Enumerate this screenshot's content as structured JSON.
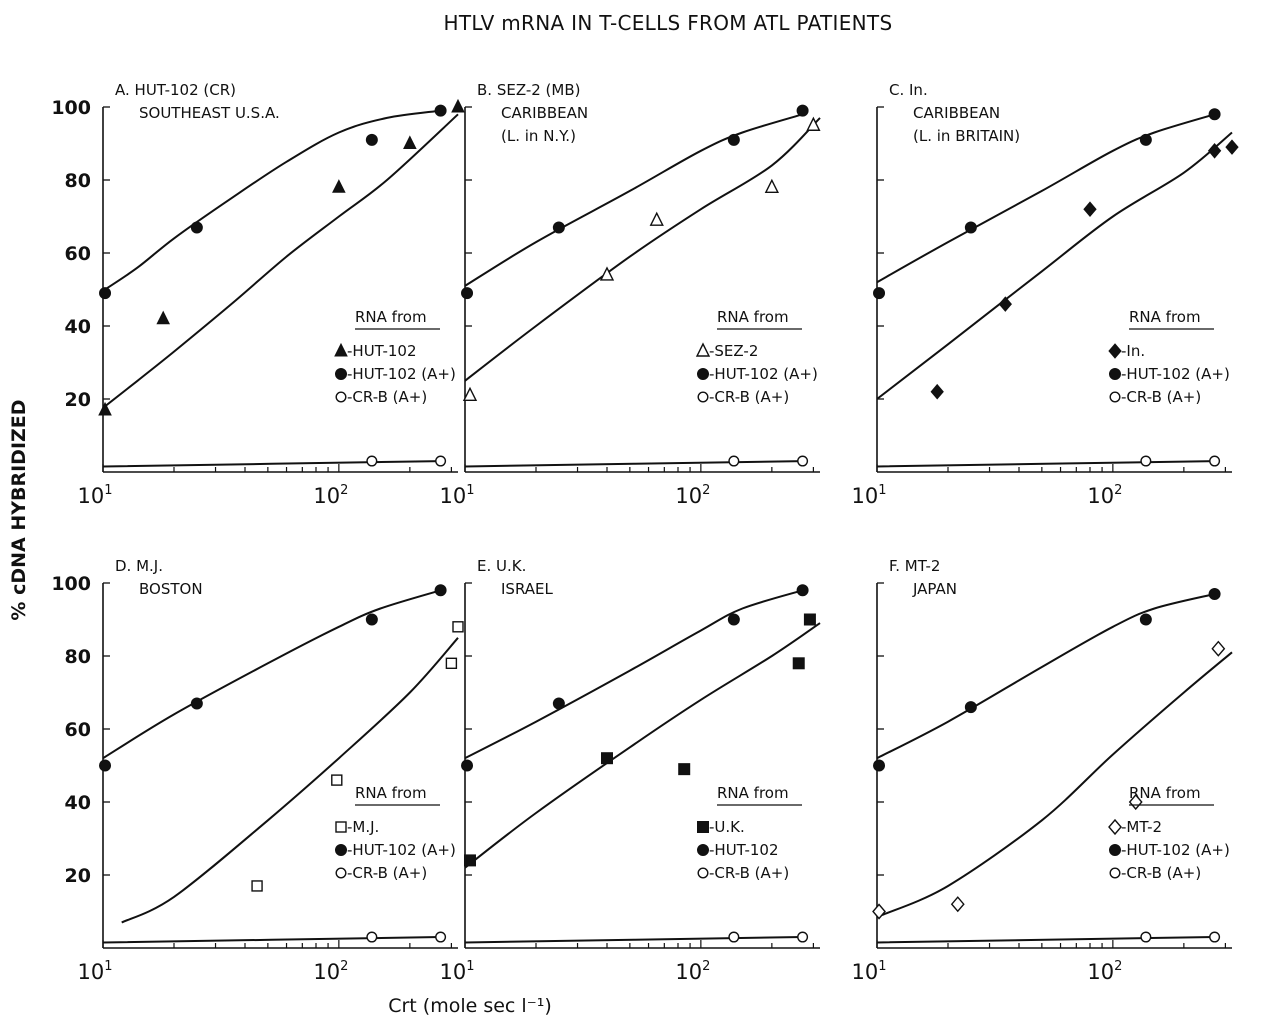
{
  "title": "HTLV mRNA IN T-CELLS FROM ATL PATIENTS",
  "ylabel": "% cDNA HYBRIDIZED",
  "xlabel": "Crt (mole sec l⁻¹)",
  "legend_heading": "RNA from",
  "y_ticks": [
    "100",
    "80",
    "60",
    "40",
    "20"
  ],
  "x_tick_base": "10",
  "x_tick_exponents": [
    "1",
    "2"
  ],
  "chart_data": [
    {
      "type": "scatter",
      "panel": "A",
      "title_lines": [
        "A. HUT-102 (CR)",
        "SOUTHEAST U.S.A."
      ],
      "xscale": "log",
      "xlim": [
        10,
        320
      ],
      "ylim": [
        0,
        100
      ],
      "grid": false,
      "legend_placement": "lower-right",
      "series": [
        {
          "name": "-HUT-102",
          "marker": "filled-triangle",
          "x": [
            10.2,
            18,
            100,
            200,
            320
          ],
          "y": [
            17,
            42,
            78,
            90,
            100
          ]
        },
        {
          "name": "-HUT-102 (A+)",
          "marker": "filled-circle",
          "x": [
            10.2,
            25,
            138,
            270
          ],
          "y": [
            49,
            67,
            91,
            99
          ]
        },
        {
          "name": "-CR-B (A+)",
          "marker": "open-circle",
          "x": [
            138,
            270
          ],
          "y": [
            3,
            3
          ]
        }
      ],
      "curves": [
        {
          "x": [
            10.2,
            14,
            20,
            35,
            60,
            100,
            160,
            270
          ],
          "y": [
            50,
            56,
            64,
            75,
            85,
            93,
            97,
            99
          ]
        },
        {
          "x": [
            10.2,
            14,
            20,
            35,
            60,
            100,
            160,
            320
          ],
          "y": [
            18,
            25,
            33,
            46,
            59,
            70,
            80,
            98
          ]
        },
        {
          "x": [
            10,
            270
          ],
          "y": [
            1.5,
            3
          ]
        }
      ]
    },
    {
      "type": "scatter",
      "panel": "B",
      "title_lines": [
        "B. SEZ-2 (MB)",
        "CARIBBEAN",
        "(L. in N.Y.)"
      ],
      "xscale": "log",
      "xlim": [
        10,
        320
      ],
      "ylim": [
        0,
        100
      ],
      "grid": false,
      "legend_placement": "lower-right",
      "series": [
        {
          "name": "-SEZ-2",
          "marker": "open-triangle",
          "x": [
            10.5,
            40,
            65,
            200,
            300
          ],
          "y": [
            21,
            54,
            69,
            78,
            95
          ]
        },
        {
          "name": "-HUT-102 (A+)",
          "marker": "filled-circle",
          "x": [
            10.2,
            25,
            138,
            270
          ],
          "y": [
            49,
            67,
            91,
            99
          ]
        },
        {
          "name": "-CR-B (A+)",
          "marker": "open-circle",
          "x": [
            138,
            270
          ],
          "y": [
            3,
            3
          ]
        }
      ],
      "curves": [
        {
          "x": [
            10,
            20,
            50,
            100,
            150,
            270
          ],
          "y": [
            51,
            63,
            77,
            88,
            93,
            98
          ]
        },
        {
          "x": [
            10,
            20,
            50,
            100,
            200,
            320
          ],
          "y": [
            25,
            40,
            59,
            72,
            84,
            97
          ]
        },
        {
          "x": [
            10,
            270
          ],
          "y": [
            1.5,
            3
          ]
        }
      ]
    },
    {
      "type": "scatter",
      "panel": "C",
      "title_lines": [
        "C. In.",
        "CARIBBEAN",
        "(L. in BRITAIN)"
      ],
      "xscale": "log",
      "xlim": [
        10,
        320
      ],
      "ylim": [
        0,
        100
      ],
      "grid": false,
      "legend_placement": "lower-right",
      "series": [
        {
          "name": "-In.",
          "marker": "filled-diamond",
          "x": [
            18,
            35,
            80,
            270,
            320
          ],
          "y": [
            22,
            46,
            72,
            88,
            89
          ]
        },
        {
          "name": "-HUT-102 (A+)",
          "marker": "filled-circle",
          "x": [
            10.2,
            25,
            138,
            270
          ],
          "y": [
            49,
            67,
            91,
            98
          ]
        },
        {
          "name": "-CR-B (A+)",
          "marker": "open-circle",
          "x": [
            138,
            270
          ],
          "y": [
            3,
            3
          ]
        }
      ],
      "curves": [
        {
          "x": [
            10,
            20,
            50,
            100,
            150,
            270
          ],
          "y": [
            52,
            63,
            77,
            88,
            93,
            98
          ]
        },
        {
          "x": [
            10,
            20,
            50,
            100,
            200,
            320
          ],
          "y": [
            20,
            35,
            55,
            70,
            82,
            93
          ]
        },
        {
          "x": [
            10,
            270
          ],
          "y": [
            1.5,
            3
          ]
        }
      ]
    },
    {
      "type": "scatter",
      "panel": "D",
      "title_lines": [
        "D. M.J.",
        "BOSTON"
      ],
      "xscale": "log",
      "xlim": [
        10,
        320
      ],
      "ylim": [
        0,
        100
      ],
      "grid": false,
      "legend_placement": "lower-right",
      "series": [
        {
          "name": "-M.J.",
          "marker": "open-square",
          "x": [
            45,
            98,
            300,
            320
          ],
          "y": [
            17,
            46,
            78,
            88
          ]
        },
        {
          "name": "-HUT-102 (A+)",
          "marker": "filled-circle",
          "x": [
            10.2,
            25,
            138,
            270
          ],
          "y": [
            50,
            67,
            90,
            98
          ]
        },
        {
          "name": "-CR-B (A+)",
          "marker": "open-circle",
          "x": [
            138,
            270
          ],
          "y": [
            3,
            3
          ]
        }
      ],
      "curves": [
        {
          "x": [
            10,
            20,
            50,
            100,
            150,
            270
          ],
          "y": [
            52,
            64,
            78,
            88,
            93,
            98
          ]
        },
        {
          "x": [
            12,
            20,
            50,
            100,
            200,
            320
          ],
          "y": [
            7,
            14,
            35,
            52,
            70,
            85
          ]
        },
        {
          "x": [
            10,
            270
          ],
          "y": [
            1.5,
            3
          ]
        }
      ]
    },
    {
      "type": "scatter",
      "panel": "E",
      "title_lines": [
        "E. U.K.",
        "ISRAEL"
      ],
      "xscale": "log",
      "xlim": [
        10,
        320
      ],
      "ylim": [
        0,
        100
      ],
      "grid": false,
      "legend_placement": "lower-right",
      "series": [
        {
          "name": "-U.K.",
          "marker": "filled-square",
          "x": [
            10.5,
            40,
            85,
            260,
            290
          ],
          "y": [
            24,
            52,
            49,
            78,
            90
          ]
        },
        {
          "name": "-HUT-102",
          "marker": "filled-circle",
          "x": [
            10.2,
            25,
            138,
            270
          ],
          "y": [
            50,
            67,
            90,
            98
          ]
        },
        {
          "name": "-CR-B (A+)",
          "marker": "open-circle",
          "x": [
            138,
            270
          ],
          "y": [
            3,
            3
          ]
        }
      ],
      "curves": [
        {
          "x": [
            10,
            20,
            50,
            100,
            150,
            270
          ],
          "y": [
            52,
            62,
            76,
            87,
            93,
            98
          ]
        },
        {
          "x": [
            10,
            20,
            50,
            100,
            200,
            320
          ],
          "y": [
            22,
            37,
            55,
            68,
            80,
            89
          ]
        },
        {
          "x": [
            10,
            270
          ],
          "y": [
            1.5,
            3
          ]
        }
      ]
    },
    {
      "type": "scatter",
      "panel": "F",
      "title_lines": [
        "F. MT-2",
        "JAPAN"
      ],
      "xscale": "log",
      "xlim": [
        10,
        320
      ],
      "ylim": [
        0,
        100
      ],
      "grid": false,
      "legend_placement": "lower-right",
      "series": [
        {
          "name": "-MT-2",
          "marker": "open-diamond",
          "x": [
            10.2,
            22,
            125,
            280
          ],
          "y": [
            10,
            12,
            40,
            82
          ]
        },
        {
          "name": "-HUT-102 (A+)",
          "marker": "filled-circle",
          "x": [
            10.2,
            25,
            138,
            270
          ],
          "y": [
            50,
            66,
            90,
            97
          ]
        },
        {
          "name": "-CR-B (A+)",
          "marker": "open-circle",
          "x": [
            138,
            270
          ],
          "y": [
            3,
            3
          ]
        }
      ],
      "curves": [
        {
          "x": [
            10,
            20,
            50,
            100,
            150,
            270
          ],
          "y": [
            52,
            62,
            77,
            88,
            93,
            97
          ]
        },
        {
          "x": [
            10.5,
            20,
            50,
            100,
            200,
            320
          ],
          "y": [
            9,
            17,
            35,
            53,
            70,
            81
          ]
        },
        {
          "x": [
            10,
            270
          ],
          "y": [
            1.5,
            3
          ]
        }
      ]
    }
  ]
}
